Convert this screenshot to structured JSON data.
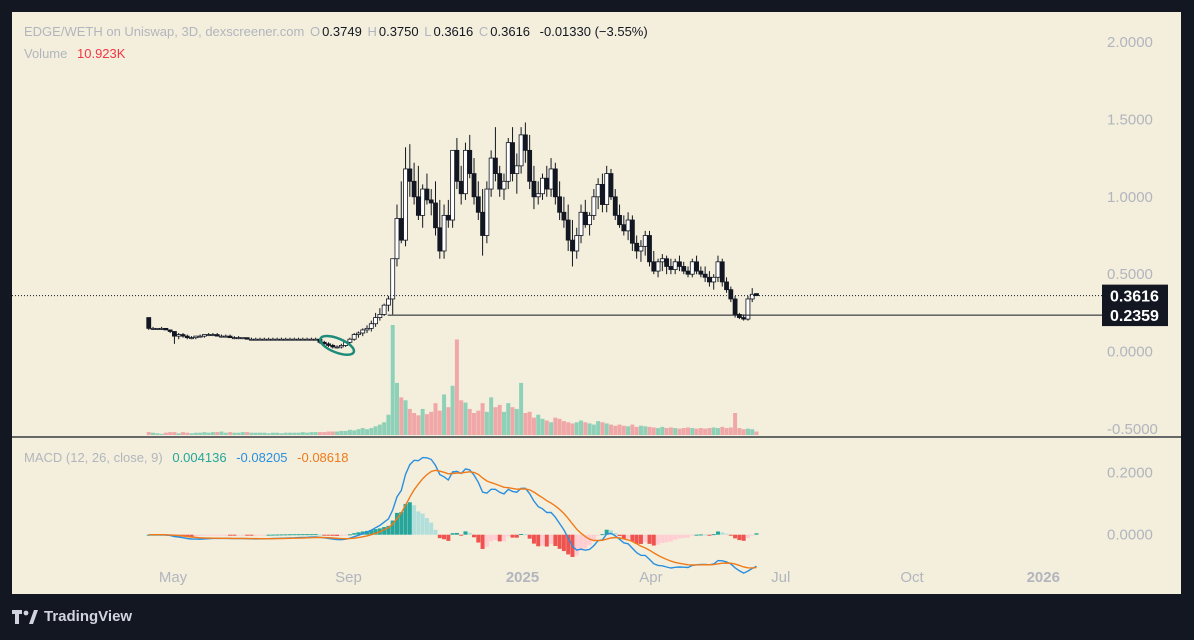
{
  "header": {
    "symbol": "EDGE/WETH on Uniswap, 3D, dexscreener.com",
    "o_label": "O",
    "o_value": "0.3749",
    "h_label": "H",
    "h_value": "0.3750",
    "l_label": "L",
    "l_value": "0.3616",
    "c_label": "C",
    "c_value": "0.3616",
    "change": "-0.01330 (−3.55%)",
    "volume_label": "Volume",
    "volume_value": "10.923K"
  },
  "macd_legend": {
    "label": "MACD (12, 26, close, 9)",
    "histogram_value": "0.004136",
    "macd_value": "-0.08205",
    "signal_value": "-0.08618"
  },
  "footer": {
    "brand": "TradingView"
  },
  "colors": {
    "background": "#f3efdc",
    "frame": "#131722",
    "up_volume": "#8fd1b8",
    "down_volume": "#f0a7a7",
    "macd_line": "#2a8fe0",
    "signal_line": "#f07a1a",
    "hist_up_strong": "#26a69a",
    "hist_up_weak": "#b2dfdb",
    "hist_down_strong": "#ef5350",
    "hist_down_weak": "#ffcdd2",
    "highlight_ellipse": "#1f8c7a"
  },
  "chart_data": [
    {
      "type": "candlestick",
      "title": "EDGE/WETH on Uniswap, 3D, dexscreener.com",
      "x_ticks": [
        {
          "label": "May",
          "date": "2024-05-01"
        },
        {
          "label": "Sep",
          "date": "2024-09-01"
        },
        {
          "label": "2025",
          "date": "2025-01-01"
        },
        {
          "label": "Apr",
          "date": "2025-04-01"
        },
        {
          "label": "Jul",
          "date": "2025-07-01"
        },
        {
          "label": "Oct",
          "date": "2025-10-01"
        },
        {
          "label": "2026",
          "date": "2026-01-01"
        }
      ],
      "y_ticks": [
        "2.0000",
        "1.5000",
        "1.0000",
        "0.5000",
        "0.0000",
        "-0.5000"
      ],
      "y_tick_values": [
        2.0,
        1.5,
        1.0,
        0.5,
        0.0,
        -0.5
      ],
      "ylim": [
        -0.5,
        2.0
      ],
      "price_label_current": "0.3616",
      "current_price": 0.3616,
      "price_label_level": "0.2359",
      "level_price": 0.2359,
      "grid": false,
      "candles_ohlc": [
        [
          0.22,
          0.22,
          0.14,
          0.15
        ],
        [
          0.15,
          0.16,
          0.14,
          0.15
        ],
        [
          0.15,
          0.15,
          0.14,
          0.15
        ],
        [
          0.15,
          0.16,
          0.14,
          0.15
        ],
        [
          0.15,
          0.15,
          0.14,
          0.14
        ],
        [
          0.14,
          0.14,
          0.12,
          0.13
        ],
        [
          0.13,
          0.13,
          0.05,
          0.1
        ],
        [
          0.1,
          0.12,
          0.08,
          0.11
        ],
        [
          0.11,
          0.12,
          0.09,
          0.1
        ],
        [
          0.1,
          0.11,
          0.08,
          0.09
        ],
        [
          0.09,
          0.1,
          0.08,
          0.09
        ],
        [
          0.09,
          0.1,
          0.08,
          0.1
        ],
        [
          0.1,
          0.11,
          0.09,
          0.1
        ],
        [
          0.1,
          0.11,
          0.09,
          0.11
        ],
        [
          0.11,
          0.12,
          0.1,
          0.11
        ],
        [
          0.11,
          0.12,
          0.1,
          0.11
        ],
        [
          0.11,
          0.12,
          0.1,
          0.1
        ],
        [
          0.1,
          0.11,
          0.09,
          0.1
        ],
        [
          0.1,
          0.11,
          0.09,
          0.1
        ],
        [
          0.1,
          0.11,
          0.09,
          0.09
        ],
        [
          0.09,
          0.1,
          0.08,
          0.09
        ],
        [
          0.09,
          0.1,
          0.08,
          0.09
        ],
        [
          0.09,
          0.09,
          0.08,
          0.09
        ],
        [
          0.09,
          0.09,
          0.08,
          0.08
        ],
        [
          0.08,
          0.09,
          0.08,
          0.08
        ],
        [
          0.08,
          0.09,
          0.08,
          0.08
        ],
        [
          0.08,
          0.09,
          0.08,
          0.08
        ],
        [
          0.08,
          0.09,
          0.08,
          0.08
        ],
        [
          0.08,
          0.09,
          0.08,
          0.08
        ],
        [
          0.08,
          0.09,
          0.08,
          0.08
        ],
        [
          0.08,
          0.09,
          0.08,
          0.08
        ],
        [
          0.08,
          0.09,
          0.08,
          0.08
        ],
        [
          0.08,
          0.09,
          0.08,
          0.08
        ],
        [
          0.08,
          0.09,
          0.08,
          0.08
        ],
        [
          0.08,
          0.09,
          0.08,
          0.08
        ],
        [
          0.08,
          0.09,
          0.08,
          0.08
        ],
        [
          0.08,
          0.09,
          0.08,
          0.08
        ],
        [
          0.08,
          0.09,
          0.08,
          0.08
        ],
        [
          0.08,
          0.09,
          0.08,
          0.08
        ],
        [
          0.08,
          0.09,
          0.08,
          0.08
        ],
        [
          0.08,
          0.08,
          0.05,
          0.06
        ],
        [
          0.06,
          0.07,
          0.04,
          0.05
        ],
        [
          0.05,
          0.06,
          0.03,
          0.04
        ],
        [
          0.04,
          0.05,
          0.02,
          0.03
        ],
        [
          0.03,
          0.04,
          0.02,
          0.03
        ],
        [
          0.03,
          0.05,
          0.02,
          0.04
        ],
        [
          0.04,
          0.07,
          0.03,
          0.06
        ],
        [
          0.06,
          0.09,
          0.05,
          0.08
        ],
        [
          0.08,
          0.12,
          0.07,
          0.11
        ],
        [
          0.11,
          0.13,
          0.09,
          0.12
        ],
        [
          0.12,
          0.15,
          0.1,
          0.14
        ],
        [
          0.14,
          0.17,
          0.12,
          0.15
        ],
        [
          0.15,
          0.2,
          0.13,
          0.18
        ],
        [
          0.18,
          0.25,
          0.16,
          0.22
        ],
        [
          0.22,
          0.28,
          0.2,
          0.24
        ],
        [
          0.24,
          0.31,
          0.23,
          0.3
        ],
        [
          0.3,
          0.36,
          0.26,
          0.34
        ],
        [
          0.34,
          0.6,
          0.24,
          0.6
        ],
        [
          0.6,
          0.95,
          0.55,
          0.86
        ],
        [
          0.86,
          1.1,
          0.7,
          0.72
        ],
        [
          0.72,
          1.32,
          0.68,
          1.18
        ],
        [
          1.18,
          1.34,
          1.0,
          1.1
        ],
        [
          1.1,
          1.22,
          0.95,
          1.0
        ],
        [
          1.0,
          1.2,
          0.85,
          0.88
        ],
        [
          0.88,
          1.08,
          0.8,
          1.05
        ],
        [
          1.05,
          1.15,
          0.95,
          0.98
        ],
        [
          0.98,
          1.05,
          0.88,
          0.96
        ],
        [
          0.96,
          1.1,
          0.75,
          0.8
        ],
        [
          0.8,
          0.98,
          0.6,
          0.65
        ],
        [
          0.65,
          0.95,
          0.6,
          0.88
        ],
        [
          0.88,
          0.98,
          0.8,
          0.85
        ],
        [
          0.85,
          1.3,
          0.8,
          1.3
        ],
        [
          1.3,
          1.38,
          1.05,
          1.1
        ],
        [
          1.1,
          1.2,
          0.95,
          1.02
        ],
        [
          1.02,
          1.35,
          0.98,
          1.3
        ],
        [
          1.3,
          1.4,
          1.12,
          1.15
        ],
        [
          1.15,
          1.25,
          0.95,
          1.0
        ],
        [
          1.0,
          1.1,
          0.85,
          0.9
        ],
        [
          0.9,
          1.05,
          0.62,
          0.75
        ],
        [
          0.75,
          1.1,
          0.7,
          1.05
        ],
        [
          1.05,
          1.3,
          1.0,
          1.25
        ],
        [
          1.25,
          1.45,
          1.1,
          1.15
        ],
        [
          1.15,
          1.2,
          1.0,
          1.05
        ],
        [
          1.05,
          1.15,
          0.98,
          1.1
        ],
        [
          1.1,
          1.38,
          1.05,
          1.35
        ],
        [
          1.35,
          1.45,
          1.1,
          1.15
        ],
        [
          1.15,
          1.28,
          1.02,
          1.2
        ],
        [
          1.2,
          1.45,
          1.15,
          1.4
        ],
        [
          1.4,
          1.48,
          1.22,
          1.3
        ],
        [
          1.3,
          1.4,
          1.05,
          1.1
        ],
        [
          1.1,
          1.2,
          0.92,
          1.0
        ],
        [
          1.0,
          1.1,
          0.95,
          1.02
        ],
        [
          1.02,
          1.15,
          0.98,
          1.12
        ],
        [
          1.12,
          1.2,
          1.0,
          1.05
        ],
        [
          1.05,
          1.25,
          1.0,
          1.18
        ],
        [
          1.18,
          1.22,
          0.95,
          1.0
        ],
        [
          1.0,
          1.1,
          0.85,
          0.9
        ],
        [
          0.9,
          1.0,
          0.8,
          0.85
        ],
        [
          0.85,
          0.95,
          0.65,
          0.72
        ],
        [
          0.72,
          0.85,
          0.55,
          0.65
        ],
        [
          0.65,
          0.8,
          0.6,
          0.75
        ],
        [
          0.75,
          0.95,
          0.7,
          0.9
        ],
        [
          0.9,
          0.98,
          0.8,
          0.82
        ],
        [
          0.82,
          0.9,
          0.75,
          0.88
        ],
        [
          0.88,
          1.05,
          0.85,
          1.0
        ],
        [
          1.0,
          1.12,
          0.92,
          1.08
        ],
        [
          1.08,
          1.15,
          0.9,
          0.95
        ],
        [
          0.95,
          1.2,
          0.9,
          1.15
        ],
        [
          1.15,
          1.18,
          0.98,
          1.0
        ],
        [
          1.0,
          1.05,
          0.85,
          0.88
        ],
        [
          0.88,
          0.95,
          0.8,
          0.82
        ],
        [
          0.82,
          0.88,
          0.75,
          0.78
        ],
        [
          0.78,
          0.9,
          0.72,
          0.85
        ],
        [
          0.85,
          0.88,
          0.65,
          0.7
        ],
        [
          0.7,
          0.75,
          0.6,
          0.65
        ],
        [
          0.65,
          0.72,
          0.58,
          0.68
        ],
        [
          0.68,
          0.78,
          0.62,
          0.75
        ],
        [
          0.75,
          0.78,
          0.55,
          0.58
        ],
        [
          0.58,
          0.65,
          0.5,
          0.52
        ],
        [
          0.52,
          0.6,
          0.48,
          0.58
        ],
        [
          0.58,
          0.63,
          0.52,
          0.6
        ],
        [
          0.6,
          0.62,
          0.5,
          0.55
        ],
        [
          0.55,
          0.6,
          0.5,
          0.53
        ],
        [
          0.53,
          0.6,
          0.5,
          0.58
        ],
        [
          0.58,
          0.62,
          0.52,
          0.55
        ],
        [
          0.55,
          0.58,
          0.5,
          0.52
        ],
        [
          0.52,
          0.55,
          0.48,
          0.5
        ],
        [
          0.5,
          0.6,
          0.48,
          0.58
        ],
        [
          0.58,
          0.62,
          0.5,
          0.52
        ],
        [
          0.52,
          0.55,
          0.48,
          0.5
        ],
        [
          0.5,
          0.55,
          0.45,
          0.48
        ],
        [
          0.48,
          0.52,
          0.42,
          0.45
        ],
        [
          0.45,
          0.5,
          0.4,
          0.48
        ],
        [
          0.48,
          0.62,
          0.45,
          0.58
        ],
        [
          0.58,
          0.6,
          0.42,
          0.45
        ],
        [
          0.45,
          0.48,
          0.38,
          0.4
        ],
        [
          0.4,
          0.42,
          0.32,
          0.34
        ],
        [
          0.34,
          0.36,
          0.22,
          0.24
        ],
        [
          0.24,
          0.25,
          0.21,
          0.22
        ],
        [
          0.22,
          0.24,
          0.2,
          0.21
        ],
        [
          0.21,
          0.36,
          0.2,
          0.34
        ],
        [
          0.34,
          0.41,
          0.32,
          0.37
        ],
        [
          0.3749,
          0.375,
          0.3616,
          0.3616
        ]
      ],
      "volumes": [
        0.05,
        0.04,
        0.03,
        0.02,
        0.04,
        0.05,
        0.05,
        0.03,
        0.05,
        0.04,
        0.03,
        0.04,
        0.04,
        0.05,
        0.04,
        0.05,
        0.05,
        0.06,
        0.04,
        0.05,
        0.04,
        0.04,
        0.05,
        0.05,
        0.04,
        0.04,
        0.04,
        0.04,
        0.03,
        0.04,
        0.04,
        0.03,
        0.04,
        0.04,
        0.04,
        0.04,
        0.05,
        0.04,
        0.05,
        0.05,
        0.05,
        0.05,
        0.06,
        0.06,
        0.06,
        0.07,
        0.07,
        0.09,
        0.08,
        0.1,
        0.12,
        0.1,
        0.12,
        0.15,
        0.18,
        0.22,
        0.35,
        1.9,
        0.9,
        0.65,
        0.6,
        0.45,
        0.38,
        0.34,
        0.45,
        0.36,
        0.4,
        0.55,
        0.42,
        0.7,
        0.48,
        0.85,
        1.65,
        0.6,
        0.56,
        0.45,
        0.38,
        0.42,
        0.55,
        0.4,
        0.65,
        0.48,
        0.52,
        0.4,
        0.55,
        0.48,
        0.45,
        0.9,
        0.38,
        0.4,
        0.3,
        0.35,
        0.28,
        0.25,
        0.22,
        0.3,
        0.28,
        0.24,
        0.22,
        0.2,
        0.22,
        0.25,
        0.22,
        0.2,
        0.18,
        0.24,
        0.22,
        0.2,
        0.18,
        0.16,
        0.18,
        0.16,
        0.15,
        0.18,
        0.14,
        0.16,
        0.15,
        0.14,
        0.13,
        0.12,
        0.14,
        0.12,
        0.13,
        0.12,
        0.11,
        0.12,
        0.13,
        0.12,
        0.11,
        0.12,
        0.11,
        0.12,
        0.13,
        0.12,
        0.14,
        0.12,
        0.13,
        0.38,
        0.12,
        0.1,
        0.11,
        0.1,
        0.06
      ],
      "volume_unit_note": ""
    },
    {
      "type": "line",
      "title": "MACD (12, 26, close, 9)",
      "y_ticks": [
        "0.2000",
        "0.0000"
      ],
      "y_tick_values": [
        0.2,
        0.0
      ],
      "ylim": [
        -0.12,
        0.25
      ],
      "series": [
        {
          "name": "MACD",
          "color": "#2a8fe0",
          "values": "computed"
        },
        {
          "name": "Signal",
          "color": "#f07a1a",
          "values": "computed"
        }
      ]
    }
  ]
}
